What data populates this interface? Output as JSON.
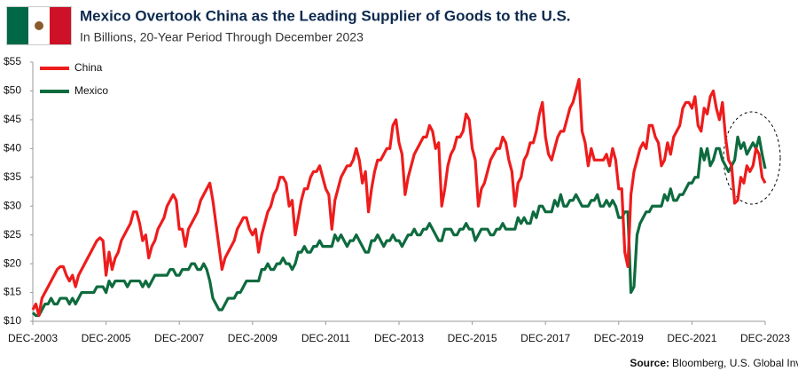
{
  "chart_data": {
    "type": "line",
    "title": "Mexico Overtook China as the Leading Supplier of Goods to the U.S.",
    "subtitle": "In Billions, 20-Year Period Through December 2023",
    "source_label": "Source:",
    "source": "Bloomberg, U.S. Global Investors",
    "x": [
      "2003-12",
      "2004-01",
      "2004-02",
      "2004-03",
      "2004-04",
      "2004-05",
      "2004-06",
      "2004-07",
      "2004-08",
      "2004-09",
      "2004-10",
      "2004-11",
      "2004-12",
      "2005-01",
      "2005-02",
      "2005-03",
      "2005-04",
      "2005-05",
      "2005-06",
      "2005-07",
      "2005-08",
      "2005-09",
      "2005-10",
      "2005-11",
      "2005-12",
      "2006-01",
      "2006-02",
      "2006-03",
      "2006-04",
      "2006-05",
      "2006-06",
      "2006-07",
      "2006-08",
      "2006-09",
      "2006-10",
      "2006-11",
      "2006-12",
      "2007-01",
      "2007-02",
      "2007-03",
      "2007-04",
      "2007-05",
      "2007-06",
      "2007-07",
      "2007-08",
      "2007-09",
      "2007-10",
      "2007-11",
      "2007-12",
      "2008-01",
      "2008-02",
      "2008-03",
      "2008-04",
      "2008-05",
      "2008-06",
      "2008-07",
      "2008-08",
      "2008-09",
      "2008-10",
      "2008-11",
      "2008-12",
      "2009-01",
      "2009-02",
      "2009-03",
      "2009-04",
      "2009-05",
      "2009-06",
      "2009-07",
      "2009-08",
      "2009-09",
      "2009-10",
      "2009-11",
      "2009-12",
      "2010-01",
      "2010-02",
      "2010-03",
      "2010-04",
      "2010-05",
      "2010-06",
      "2010-07",
      "2010-08",
      "2010-09",
      "2010-10",
      "2010-11",
      "2010-12",
      "2011-01",
      "2011-02",
      "2011-03",
      "2011-04",
      "2011-05",
      "2011-06",
      "2011-07",
      "2011-08",
      "2011-09",
      "2011-10",
      "2011-11",
      "2011-12",
      "2012-01",
      "2012-02",
      "2012-03",
      "2012-04",
      "2012-05",
      "2012-06",
      "2012-07",
      "2012-08",
      "2012-09",
      "2012-10",
      "2012-11",
      "2012-12",
      "2013-01",
      "2013-02",
      "2013-03",
      "2013-04",
      "2013-05",
      "2013-06",
      "2013-07",
      "2013-08",
      "2013-09",
      "2013-10",
      "2013-11",
      "2013-12",
      "2014-01",
      "2014-02",
      "2014-03",
      "2014-04",
      "2014-05",
      "2014-06",
      "2014-07",
      "2014-08",
      "2014-09",
      "2014-10",
      "2014-11",
      "2014-12",
      "2015-01",
      "2015-02",
      "2015-03",
      "2015-04",
      "2015-05",
      "2015-06",
      "2015-07",
      "2015-08",
      "2015-09",
      "2015-10",
      "2015-11",
      "2015-12",
      "2016-01",
      "2016-02",
      "2016-03",
      "2016-04",
      "2016-05",
      "2016-06",
      "2016-07",
      "2016-08",
      "2016-09",
      "2016-10",
      "2016-11",
      "2016-12",
      "2017-01",
      "2017-02",
      "2017-03",
      "2017-04",
      "2017-05",
      "2017-06",
      "2017-07",
      "2017-08",
      "2017-09",
      "2017-10",
      "2017-11",
      "2017-12",
      "2018-01",
      "2018-02",
      "2018-03",
      "2018-04",
      "2018-05",
      "2018-06",
      "2018-07",
      "2018-08",
      "2018-09",
      "2018-10",
      "2018-11",
      "2018-12",
      "2019-01",
      "2019-02",
      "2019-03",
      "2019-04",
      "2019-05",
      "2019-06",
      "2019-07",
      "2019-08",
      "2019-09",
      "2019-10",
      "2019-11",
      "2019-12",
      "2020-01",
      "2020-02",
      "2020-03",
      "2020-04",
      "2020-05",
      "2020-06",
      "2020-07",
      "2020-08",
      "2020-09",
      "2020-10",
      "2020-11",
      "2020-12",
      "2021-01",
      "2021-02",
      "2021-03",
      "2021-04",
      "2021-05",
      "2021-06",
      "2021-07",
      "2021-08",
      "2021-09",
      "2021-10",
      "2021-11",
      "2021-12",
      "2022-01",
      "2022-02",
      "2022-03",
      "2022-04",
      "2022-05",
      "2022-06",
      "2022-07",
      "2022-08",
      "2022-09",
      "2022-10",
      "2022-11",
      "2022-12",
      "2023-01",
      "2023-02",
      "2023-03",
      "2023-04",
      "2023-05",
      "2023-06",
      "2023-07",
      "2023-08",
      "2023-09",
      "2023-10",
      "2023-11",
      "2023-12"
    ],
    "series": [
      {
        "name": "China",
        "color": "#ee1c1c",
        "values": [
          12,
          13,
          11,
          14,
          15,
          16,
          17,
          18,
          19,
          19.5,
          19.5,
          18,
          17,
          18,
          16,
          18,
          19,
          20,
          21,
          22,
          23,
          24,
          24.5,
          24,
          18,
          22,
          19,
          21,
          22,
          24,
          25,
          26,
          27,
          29,
          29,
          27,
          24,
          25,
          21,
          23,
          24,
          26,
          27,
          28,
          30,
          31,
          32,
          31,
          26,
          26,
          23,
          26,
          27,
          28,
          29,
          31,
          32,
          33,
          34,
          31,
          27,
          23,
          19,
          21,
          22,
          23,
          24,
          26,
          27,
          28,
          28,
          26,
          25,
          26,
          22,
          25,
          27,
          29,
          30,
          32,
          33,
          35,
          35,
          34,
          30,
          31,
          25,
          28,
          31,
          33,
          33,
          35,
          36,
          36,
          37,
          35,
          33,
          32,
          26,
          31,
          33,
          35,
          36,
          37,
          37,
          38,
          40,
          38,
          34,
          36,
          29,
          33,
          36,
          38,
          38,
          39,
          40,
          40,
          44,
          45,
          41,
          39,
          32,
          35,
          37,
          39,
          40,
          41,
          42,
          42,
          44,
          43,
          40,
          41,
          30,
          33,
          37,
          39,
          40,
          42,
          42,
          43,
          46,
          45,
          40,
          38,
          30,
          33,
          34,
          36,
          38,
          39,
          40,
          40,
          42,
          41,
          38,
          36,
          30,
          34,
          35,
          38,
          39,
          41,
          41,
          43,
          46,
          48,
          42,
          39,
          38,
          40,
          42,
          43,
          43,
          45,
          47,
          48,
          50,
          52,
          43,
          41,
          37,
          40,
          38,
          38,
          38,
          38,
          39,
          37,
          40,
          38,
          33,
          33,
          22,
          19.5,
          32,
          36,
          38,
          40,
          41,
          40,
          44,
          44,
          42,
          41,
          37,
          38,
          41,
          39,
          42,
          43,
          44,
          47,
          48,
          48,
          47,
          49,
          44,
          43,
          47,
          46,
          49,
          50,
          47,
          45,
          48,
          42,
          38,
          37,
          30.5,
          31,
          35,
          34,
          37,
          36,
          37,
          40,
          39,
          35,
          34
        ]
      },
      {
        "name": "Mexico",
        "color": "#0e6b3e",
        "values": [
          11.5,
          11,
          11,
          12,
          13,
          13,
          14,
          13,
          13,
          14,
          14,
          14,
          13,
          14,
          13,
          14,
          15,
          15,
          15,
          15,
          15,
          16,
          16,
          16,
          15,
          17,
          16,
          17,
          17,
          17,
          17,
          16,
          17,
          17,
          17,
          17,
          16,
          17,
          16,
          17,
          18,
          18,
          18,
          18,
          18,
          19,
          19,
          18,
          18,
          19,
          19,
          19,
          20,
          20,
          19,
          19,
          20,
          19,
          17,
          14,
          13,
          12,
          12,
          13,
          14,
          14,
          14,
          15,
          15,
          16,
          17,
          17,
          17,
          17,
          17,
          19,
          19,
          20,
          19,
          19,
          20,
          20,
          21,
          20,
          20,
          19,
          20,
          22,
          22,
          23,
          22,
          22,
          23,
          23,
          24,
          23,
          23,
          23,
          23,
          25,
          24,
          25,
          24,
          23,
          24,
          24,
          25,
          24,
          23,
          22,
          22,
          24,
          24,
          25,
          24,
          23,
          24,
          24,
          25,
          24,
          24,
          23,
          24,
          25,
          25,
          26,
          25,
          25,
          26,
          26,
          27,
          26,
          25,
          24,
          24,
          26,
          26,
          26,
          25,
          25,
          26,
          26,
          27,
          26,
          26,
          24,
          25,
          26,
          26,
          26,
          25,
          25,
          26,
          26,
          27,
          26,
          26,
          26,
          26,
          28,
          27,
          28,
          27,
          27,
          29,
          28,
          30,
          30,
          29,
          29,
          29,
          31,
          30,
          32,
          30,
          30,
          31,
          31,
          32,
          31,
          30,
          30,
          30,
          31,
          31,
          32,
          30,
          30,
          31,
          30,
          31,
          30,
          28,
          28,
          29,
          29,
          15,
          16,
          25,
          27,
          28,
          29,
          29,
          30,
          30,
          30,
          30,
          32,
          31,
          33,
          31,
          31,
          32,
          32,
          33,
          34,
          34,
          35,
          35,
          40,
          38,
          40,
          37,
          38,
          40,
          40,
          38,
          37,
          36,
          37,
          38,
          42,
          40,
          41,
          39,
          40,
          41,
          40,
          42,
          39,
          36.5
        ]
      }
    ],
    "xlim": [
      "2003-12",
      "2023-12"
    ],
    "xticks": [
      {
        "value": "2003-12",
        "label": "DEC-2003"
      },
      {
        "value": "2005-12",
        "label": "DEC-2005"
      },
      {
        "value": "2007-12",
        "label": "DEC-2007"
      },
      {
        "value": "2009-12",
        "label": "DEC-2009"
      },
      {
        "value": "2011-12",
        "label": "DEC-2011"
      },
      {
        "value": "2013-12",
        "label": "DEC-2013"
      },
      {
        "value": "2015-12",
        "label": "DEC-2015"
      },
      {
        "value": "2017-12",
        "label": "DEC-2017"
      },
      {
        "value": "2019-12",
        "label": "DEC-2019"
      },
      {
        "value": "2021-12",
        "label": "DEC-2021"
      },
      {
        "value": "2023-12",
        "label": "DEC-2023"
      }
    ],
    "ylim": [
      10,
      55
    ],
    "yticks": [
      {
        "value": 10,
        "label": "$10"
      },
      {
        "value": 15,
        "label": "$15"
      },
      {
        "value": 20,
        "label": "$20"
      },
      {
        "value": 25,
        "label": "$25"
      },
      {
        "value": 30,
        "label": "$30"
      },
      {
        "value": 35,
        "label": "$35"
      },
      {
        "value": 40,
        "label": "$40"
      },
      {
        "value": 45,
        "label": "$45"
      },
      {
        "value": 50,
        "label": "$50"
      },
      {
        "value": 55,
        "label": "$55"
      }
    ],
    "grid": false,
    "legend": "upper left"
  }
}
